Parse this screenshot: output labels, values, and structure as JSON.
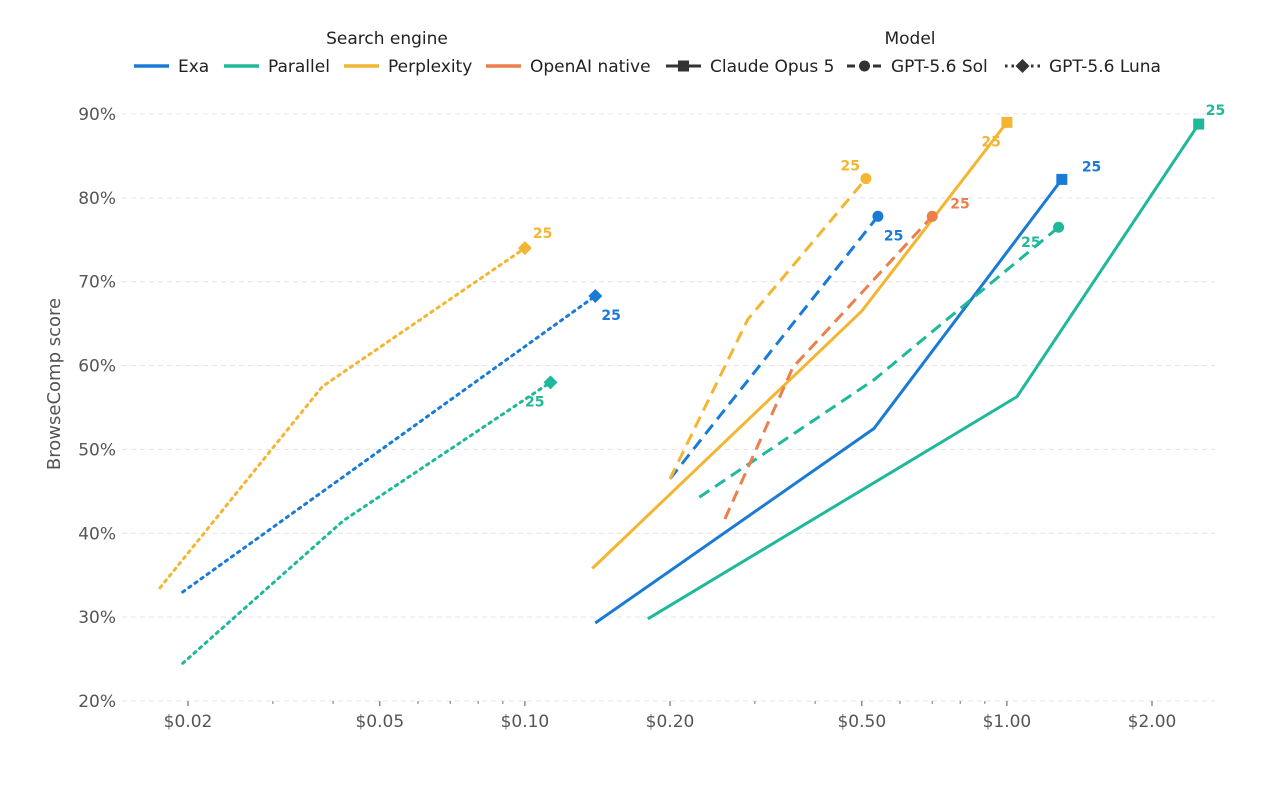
{
  "chart_data": {
    "type": "line",
    "ylabel": "BrowseComp score",
    "xlabel": "",
    "x_scale": "log",
    "xlim": [
      0.0155,
      2.9
    ],
    "ylim": [
      20,
      92
    ],
    "y_ticks": [
      20,
      30,
      40,
      50,
      60,
      70,
      80,
      90
    ],
    "y_tick_labels": [
      "20%",
      "30%",
      "40%",
      "50%",
      "60%",
      "70%",
      "80%",
      "90%"
    ],
    "x_ticks": [
      0.02,
      0.05,
      0.1,
      0.2,
      0.5,
      1.0,
      2.0
    ],
    "x_tick_labels": [
      "$0.02",
      "$0.05",
      "$0.10",
      "$0.20",
      "$0.50",
      "$1.00",
      "$2.00"
    ],
    "x_minor_ticks": [
      0.03,
      0.04,
      0.06,
      0.07,
      0.08,
      0.09,
      0.3,
      0.4,
      0.6,
      0.7,
      0.8,
      0.9
    ],
    "grid": true,
    "legend": {
      "engine_title": "Search engine",
      "model_title": "Model",
      "engines": [
        {
          "name": "Exa",
          "color": "#1a7bd6"
        },
        {
          "name": "Parallel",
          "color": "#1fb89a"
        },
        {
          "name": "Perplexity",
          "color": "#f2b632"
        },
        {
          "name": "OpenAI native",
          "color": "#ec7f4c"
        }
      ],
      "models": [
        {
          "name": "Claude Opus 5",
          "style": "solid",
          "marker": "square"
        },
        {
          "name": "GPT-5.6 Sol",
          "style": "dashed",
          "marker": "circle"
        },
        {
          "name": "GPT-5.6 Luna",
          "style": "dotted",
          "marker": "diamond"
        }
      ]
    },
    "series": [
      {
        "engine": "Exa",
        "model": "Claude Opus 5",
        "x": [
          0.14,
          0.53,
          1.3
        ],
        "y": [
          29.3,
          52.5,
          82.2
        ],
        "end_label": "25"
      },
      {
        "engine": "Parallel",
        "model": "Claude Opus 5",
        "x": [
          0.18,
          1.05,
          2.5
        ],
        "y": [
          29.8,
          56.3,
          88.8
        ],
        "end_label": "25"
      },
      {
        "engine": "Perplexity",
        "model": "Claude Opus 5",
        "x": [
          0.138,
          0.5,
          1.0
        ],
        "y": [
          35.8,
          66.5,
          89.0
        ],
        "end_label": "25"
      },
      {
        "engine": "Exa",
        "model": "GPT-5.6 Sol",
        "x": [
          0.2,
          0.54
        ],
        "y": [
          46.5,
          77.8
        ],
        "end_label": "25"
      },
      {
        "engine": "Parallel",
        "model": "GPT-5.6 Sol",
        "x": [
          0.23,
          0.53,
          1.28
        ],
        "y": [
          44.3,
          58.3,
          76.5
        ],
        "end_label": "25"
      },
      {
        "engine": "Perplexity",
        "model": "GPT-5.6 Sol",
        "x": [
          0.2,
          0.29,
          0.51
        ],
        "y": [
          46.5,
          65.5,
          82.3
        ],
        "end_label": "25"
      },
      {
        "engine": "OpenAI native",
        "model": "GPT-5.6 Sol",
        "x": [
          0.26,
          0.36,
          0.7
        ],
        "y": [
          41.7,
          59.8,
          77.8
        ],
        "end_label": "25"
      },
      {
        "engine": "Exa",
        "model": "GPT-5.6 Luna",
        "x": [
          0.0195,
          0.14
        ],
        "y": [
          33.0,
          68.3
        ],
        "end_label": "25"
      },
      {
        "engine": "Parallel",
        "model": "GPT-5.6 Luna",
        "x": [
          0.0195,
          0.042,
          0.113
        ],
        "y": [
          24.5,
          41.5,
          58.0
        ],
        "end_label": "25"
      },
      {
        "engine": "Perplexity",
        "model": "GPT-5.6 Luna",
        "x": [
          0.0175,
          0.038,
          0.1
        ],
        "y": [
          33.5,
          57.5,
          74.0
        ],
        "end_label": "25"
      }
    ]
  }
}
